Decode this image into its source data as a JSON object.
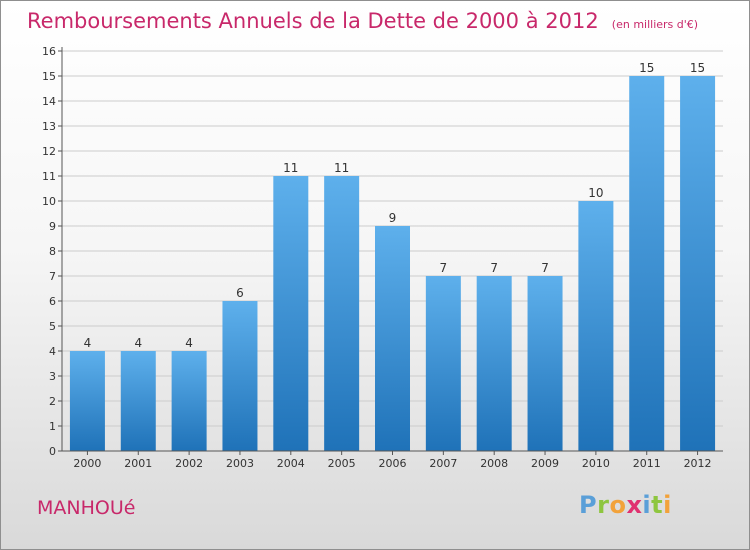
{
  "header": {
    "title": "Remboursements Annuels de la Dette de 2000 à 2012",
    "subtitle": "(en milliers d'€)"
  },
  "footer": {
    "commune": "MANHOUé",
    "logo_letters": [
      "P",
      "r",
      "o",
      "x",
      "i",
      "t",
      "i"
    ],
    "logo_colors": [
      "#5a9fd8",
      "#8ec63f",
      "#f2a23a",
      "#e0316f",
      "#5a9fd8",
      "#8ec63f",
      "#f2a23a"
    ]
  },
  "colors": {
    "bar_light": "#5eb0ec",
    "bar_dark": "#1f72b8",
    "title": "#c8286a",
    "grid": "#cccccc"
  },
  "chart_data": {
    "type": "bar",
    "title": "Remboursements Annuels de la Dette de 2000 à 2012",
    "subtitle": "(en milliers d'€)",
    "categories": [
      "2000",
      "2001",
      "2002",
      "2003",
      "2004",
      "2005",
      "2006",
      "2007",
      "2008",
      "2009",
      "2010",
      "2011",
      "2012"
    ],
    "values": [
      4,
      4,
      4,
      6,
      11,
      11,
      9,
      7,
      7,
      7,
      10,
      15,
      15
    ],
    "ylim": [
      0,
      16
    ],
    "yticks": [
      0,
      1,
      2,
      3,
      4,
      5,
      6,
      7,
      8,
      9,
      10,
      11,
      12,
      13,
      14,
      15,
      16
    ],
    "grid": true
  }
}
